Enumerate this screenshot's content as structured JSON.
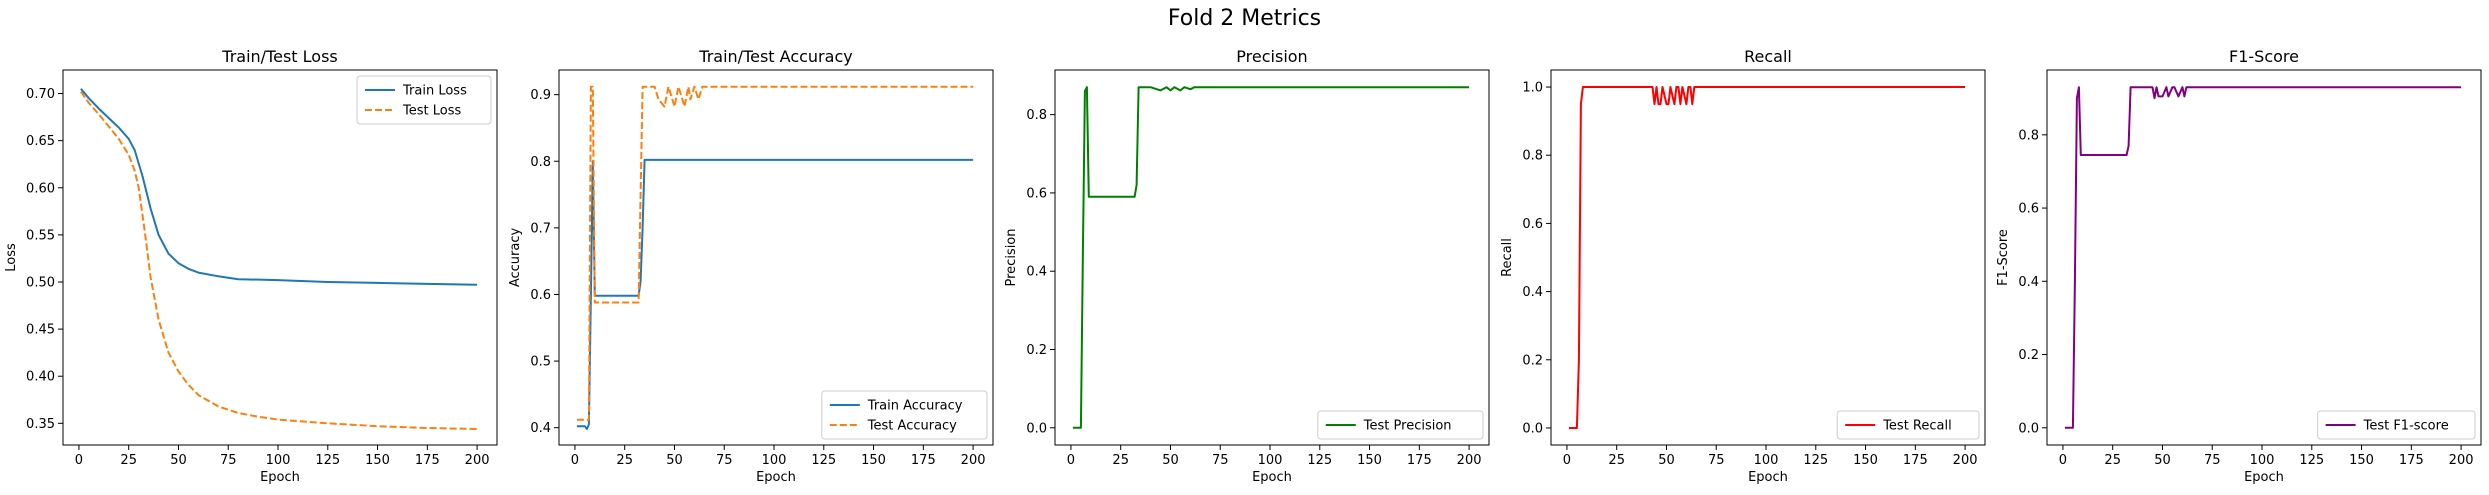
{
  "figure": {
    "title": "Fold 2 Metrics"
  },
  "chart_data": [
    {
      "type": "line",
      "title": "Train/Test Loss",
      "xlabel": "Epoch",
      "ylabel": "Loss",
      "xlim": [
        -8,
        210
      ],
      "ylim": [
        0.327,
        0.725
      ],
      "xticks": [
        0,
        25,
        50,
        75,
        100,
        125,
        150,
        175,
        200
      ],
      "yticks": [
        0.35,
        0.4,
        0.45,
        0.5,
        0.55,
        0.6,
        0.65,
        0.7
      ],
      "ytick_labels": [
        "0.35",
        "0.40",
        "0.45",
        "0.50",
        "0.55",
        "0.60",
        "0.65",
        "0.70"
      ],
      "legend": "upper-right",
      "series": [
        {
          "name": "Train Loss",
          "color": "#1f77b4",
          "dash": "solid",
          "x": [
            1,
            5,
            10,
            15,
            20,
            25,
            28,
            32,
            36,
            40,
            45,
            50,
            55,
            60,
            70,
            80,
            100,
            125,
            150,
            175,
            200
          ],
          "y": [
            0.705,
            0.695,
            0.684,
            0.674,
            0.664,
            0.652,
            0.64,
            0.612,
            0.578,
            0.55,
            0.53,
            0.52,
            0.514,
            0.51,
            0.506,
            0.503,
            0.502,
            0.5,
            0.499,
            0.498,
            0.497
          ]
        },
        {
          "name": "Test Loss",
          "color": "#ff7f0e",
          "dash": "dashed",
          "x": [
            1,
            5,
            10,
            15,
            20,
            25,
            28,
            30,
            33,
            36,
            40,
            45,
            50,
            55,
            60,
            70,
            80,
            90,
            100,
            125,
            150,
            175,
            200
          ],
          "y": [
            0.702,
            0.69,
            0.678,
            0.665,
            0.652,
            0.635,
            0.618,
            0.6,
            0.555,
            0.505,
            0.46,
            0.425,
            0.405,
            0.391,
            0.38,
            0.368,
            0.361,
            0.357,
            0.354,
            0.35,
            0.347,
            0.345,
            0.344
          ]
        }
      ]
    },
    {
      "type": "line",
      "title": "Train/Test Accuracy",
      "xlabel": "Epoch",
      "ylabel": "Accuracy",
      "xlim": [
        -8,
        210
      ],
      "ylim": [
        0.374,
        0.937
      ],
      "xticks": [
        0,
        25,
        50,
        75,
        100,
        125,
        150,
        175,
        200
      ],
      "yticks": [
        0.4,
        0.5,
        0.6,
        0.7,
        0.8,
        0.9
      ],
      "ytick_labels": [
        "0.4",
        "0.5",
        "0.6",
        "0.7",
        "0.8",
        "0.9"
      ],
      "legend": "lower-right",
      "series": [
        {
          "name": "Train Accuracy",
          "color": "#1f77b4",
          "dash": "solid",
          "x": [
            1,
            5,
            6,
            7,
            8,
            9,
            10,
            12,
            15,
            20,
            25,
            30,
            32,
            33,
            34,
            35,
            36,
            40,
            50,
            75,
            100,
            150,
            200
          ],
          "y": [
            0.402,
            0.402,
            0.398,
            0.405,
            0.6,
            0.8,
            0.598,
            0.598,
            0.598,
            0.598,
            0.598,
            0.598,
            0.598,
            0.62,
            0.7,
            0.802,
            0.802,
            0.802,
            0.802,
            0.802,
            0.802,
            0.802,
            0.802
          ]
        },
        {
          "name": "Test Accuracy",
          "color": "#ff7f0e",
          "dash": "dashed",
          "x": [
            1,
            5,
            6,
            7,
            8,
            9,
            10,
            12,
            15,
            20,
            25,
            30,
            32,
            33,
            34,
            35,
            40,
            42,
            45,
            47,
            50,
            52,
            54,
            55,
            57,
            58,
            60,
            62,
            64,
            65,
            70,
            80,
            100,
            150,
            200
          ],
          "y": [
            0.412,
            0.412,
            0.412,
            0.412,
            0.912,
            0.912,
            0.588,
            0.588,
            0.588,
            0.588,
            0.588,
            0.588,
            0.588,
            0.75,
            0.912,
            0.912,
            0.912,
            0.893,
            0.882,
            0.912,
            0.882,
            0.912,
            0.893,
            0.882,
            0.912,
            0.893,
            0.912,
            0.893,
            0.912,
            0.912,
            0.912,
            0.912,
            0.912,
            0.912,
            0.912
          ]
        }
      ]
    },
    {
      "type": "line",
      "title": "Precision",
      "xlabel": "Epoch",
      "ylabel": "Precision",
      "xlim": [
        -8,
        210
      ],
      "ylim": [
        -0.044,
        0.914
      ],
      "xticks": [
        0,
        25,
        50,
        75,
        100,
        125,
        150,
        175,
        200
      ],
      "yticks": [
        0.0,
        0.2,
        0.4,
        0.6,
        0.8
      ],
      "ytick_labels": [
        "0.0",
        "0.2",
        "0.4",
        "0.6",
        "0.8"
      ],
      "legend": "lower-right",
      "series": [
        {
          "name": "Test Precision",
          "color": "#008000",
          "dash": "solid",
          "x": [
            1,
            4,
            5,
            6,
            7,
            8,
            9,
            10,
            15,
            20,
            25,
            30,
            32,
            33,
            34,
            35,
            40,
            45,
            48,
            50,
            52,
            55,
            57,
            60,
            62,
            65,
            70,
            100,
            150,
            200
          ],
          "y": [
            0.0,
            0.0,
            0.0,
            0.45,
            0.86,
            0.87,
            0.59,
            0.59,
            0.59,
            0.59,
            0.59,
            0.59,
            0.59,
            0.62,
            0.87,
            0.87,
            0.87,
            0.862,
            0.87,
            0.862,
            0.87,
            0.862,
            0.87,
            0.865,
            0.87,
            0.87,
            0.87,
            0.87,
            0.87,
            0.87
          ]
        }
      ]
    },
    {
      "type": "line",
      "title": "Recall",
      "xlabel": "Epoch",
      "ylabel": "Recall",
      "xlim": [
        -8,
        210
      ],
      "ylim": [
        -0.05,
        1.05
      ],
      "xticks": [
        0,
        25,
        50,
        75,
        100,
        125,
        150,
        175,
        200
      ],
      "yticks": [
        0.0,
        0.2,
        0.4,
        0.6,
        0.8,
        1.0
      ],
      "ytick_labels": [
        "0.0",
        "0.2",
        "0.4",
        "0.6",
        "0.8",
        "1.0"
      ],
      "legend": "lower-right",
      "series": [
        {
          "name": "Test Recall",
          "color": "#ff0000",
          "dash": "solid",
          "x": [
            1,
            4,
            5,
            6,
            7,
            8,
            9,
            10,
            20,
            30,
            40,
            43,
            44,
            45,
            46,
            47,
            48,
            50,
            51,
            52,
            54,
            55,
            56,
            57,
            58,
            60,
            61,
            62,
            63,
            64,
            65,
            70,
            100,
            150,
            200
          ],
          "y": [
            0.0,
            0.0,
            0.0,
            0.2,
            0.95,
            1.0,
            1.0,
            1.0,
            1.0,
            1.0,
            1.0,
            1.0,
            0.95,
            1.0,
            0.95,
            0.95,
            1.0,
            0.95,
            0.95,
            1.0,
            0.95,
            1.0,
            1.0,
            0.95,
            1.0,
            0.95,
            1.0,
            1.0,
            0.95,
            1.0,
            1.0,
            1.0,
            1.0,
            1.0,
            1.0
          ]
        }
      ]
    },
    {
      "type": "line",
      "title": "F1-Score",
      "xlabel": "Epoch",
      "ylabel": "F1-Score",
      "xlim": [
        -8,
        210
      ],
      "ylim": [
        -0.047,
        0.977
      ],
      "xticks": [
        0,
        25,
        50,
        75,
        100,
        125,
        150,
        175,
        200
      ],
      "yticks": [
        0.0,
        0.2,
        0.4,
        0.6,
        0.8
      ],
      "ytick_labels": [
        "0.0",
        "0.2",
        "0.4",
        "0.6",
        "0.8"
      ],
      "legend": "lower-right",
      "series": [
        {
          "name": "Test F1-score",
          "color": "#800080",
          "dash": "solid",
          "x": [
            1,
            4,
            5,
            6,
            7,
            8,
            9,
            10,
            15,
            20,
            25,
            30,
            32,
            33,
            34,
            35,
            40,
            45,
            46,
            47,
            48,
            50,
            52,
            53,
            55,
            56,
            58,
            60,
            61,
            62,
            63,
            65,
            70,
            100,
            150,
            200
          ],
          "y": [
            0.0,
            0.0,
            0.0,
            0.4,
            0.9,
            0.93,
            0.745,
            0.745,
            0.745,
            0.745,
            0.745,
            0.745,
            0.745,
            0.77,
            0.93,
            0.93,
            0.93,
            0.93,
            0.9,
            0.93,
            0.905,
            0.905,
            0.93,
            0.905,
            0.93,
            0.93,
            0.905,
            0.93,
            0.905,
            0.93,
            0.93,
            0.93,
            0.93,
            0.93,
            0.93,
            0.93
          ]
        }
      ]
    }
  ]
}
